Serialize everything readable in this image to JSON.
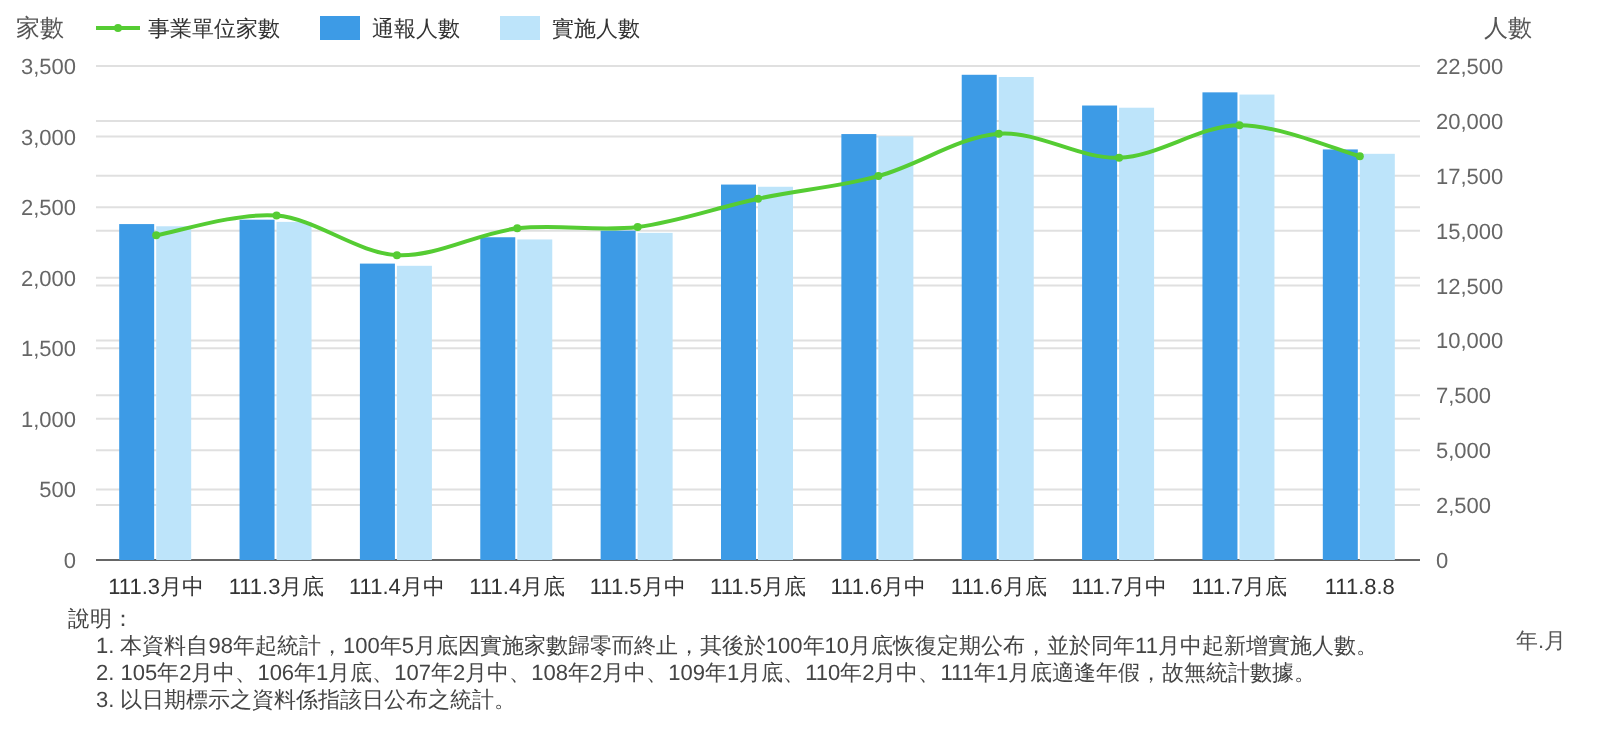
{
  "chart_data": {
    "type": "bar",
    "ylabel": "家數",
    "y2label": "人數",
    "xlabel": "年.月",
    "categories": [
      "111.3月中",
      "111.3月底",
      "111.4月中",
      "111.4月底",
      "111.5月中",
      "111.5月底",
      "111.6月中",
      "111.6月底",
      "111.7月中",
      "111.7月底",
      "111.8.8"
    ],
    "series": [
      {
        "name": "事業單位家數",
        "type": "line",
        "color": "#55cc33",
        "marker": "circle",
        "values": [
          2300,
          2440,
          2160,
          2350,
          2360,
          2560,
          2720,
          3020,
          2850,
          3080,
          2860
        ]
      },
      {
        "name": "通報人數",
        "axis": "y2",
        "color": "#3d9be6",
        "values": [
          15300,
          15500,
          13500,
          14700,
          15000,
          17100,
          19400,
          22100,
          20700,
          21300,
          18700
        ]
      },
      {
        "name": "實施人數",
        "axis": "y2",
        "color": "#bde4fa",
        "values": [
          15200,
          15400,
          13400,
          14600,
          14900,
          17000,
          19300,
          22000,
          20600,
          21200,
          18500
        ]
      }
    ],
    "ylim": [
      0,
      3500
    ],
    "yticks": [
      0,
      {
        "value": 500,
        "label": "500"
      },
      {
        "value": 1000,
        "label": "1,000"
      },
      {
        "value": 1500,
        "label": "1,500"
      },
      {
        "value": 2000,
        "label": "2,000"
      },
      {
        "value": 2500,
        "label": "2,500"
      },
      {
        "value": 3000,
        "label": "3,000"
      },
      {
        "value": 3500,
        "label": "3,500"
      }
    ],
    "y2lim": [
      0,
      22500
    ],
    "y2ticks": [
      0,
      {
        "value": 2500,
        "label": "2,500"
      },
      {
        "value": 5000,
        "label": "5,000"
      },
      {
        "value": 7500,
        "label": "7,500"
      },
      {
        "value": 10000,
        "label": "10,000"
      },
      {
        "value": 12500,
        "label": "12,500"
      },
      {
        "value": 15000,
        "label": "15,000"
      },
      {
        "value": 17500,
        "label": "17,500"
      },
      {
        "value": 20000,
        "label": "20,000"
      },
      {
        "value": 22500,
        "label": "22,500"
      }
    ],
    "grid": true,
    "legend": "top left",
    "annotations": [
      "說明：",
      "1. 本資料自98年起統計，100年5月底因實施家數歸零而終止，其後於100年10月底恢復定期公布，並於同年11月中起新增實施人數。",
      "2. 105年2月中、106年1月底、107年2月中、108年2月中、109年1月底、110年2月中、111年1月底適逢年假，故無統計數據。",
      "3. 以日期標示之資料係指該日公布之統計。"
    ]
  }
}
